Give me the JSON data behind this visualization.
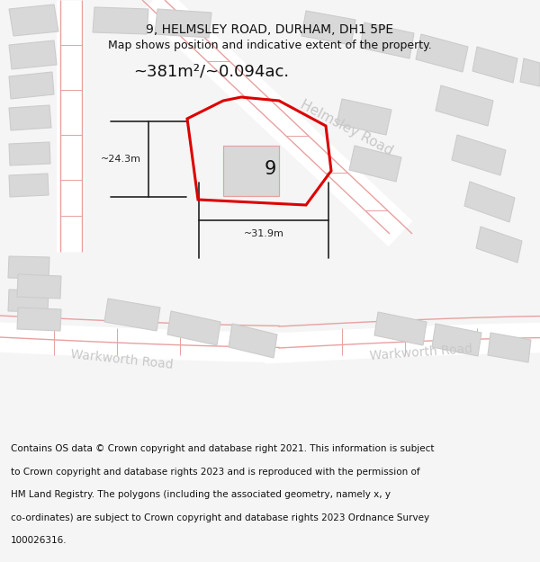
{
  "title_line1": "9, HELMSLEY ROAD, DURHAM, DH1 5PE",
  "title_line2": "Map shows position and indicative extent of the property.",
  "area_label": "~381m²/~0.094ac.",
  "number_label": "9",
  "dim_width": "~31.9m",
  "dim_height": "~24.3m",
  "road_label1": "Helmsley Road",
  "road_label2a": "Warkworth Road",
  "road_label2b": "Warkworth Road",
  "footer_lines": [
    "Contains OS data © Crown copyright and database right 2021. This information is subject",
    "to Crown copyright and database rights 2023 and is reproduced with the permission of",
    "HM Land Registry. The polygons (including the associated geometry, namely x, y",
    "co-ordinates) are subject to Crown copyright and database rights 2023 Ordnance Survey",
    "100026316."
  ],
  "bg_color": "#f5f5f5",
  "building_fill": "#d8d8d8",
  "building_edge": "#cccccc",
  "road_line_color": "#e8a0a0",
  "property_color": "#dd0000",
  "dim_line_color": "#222222",
  "text_color": "#111111",
  "road_text_color": "#c8c8c8",
  "footer_fontsize": 7.5,
  "title_fontsize": 10,
  "subtitle_fontsize": 9
}
